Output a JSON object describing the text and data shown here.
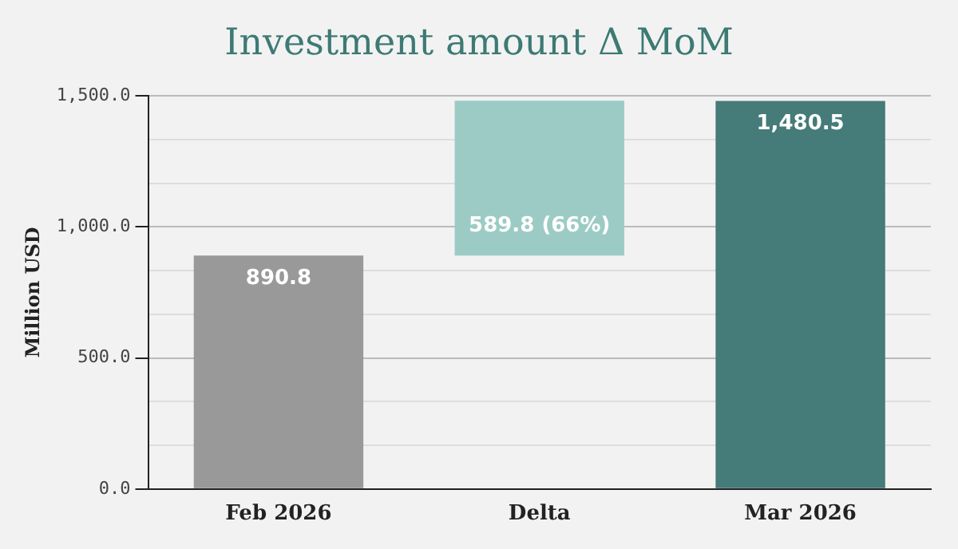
{
  "chart_data": {
    "type": "bar",
    "title": "Investment amount Δ MoM",
    "ylabel": "Million USD",
    "categories": [
      "Feb 2026",
      "Delta",
      "Mar 2026"
    ],
    "values": [
      890.8,
      589.8,
      1480.5
    ],
    "base": [
      0,
      890.8,
      0
    ],
    "colors": [
      "#999999",
      "#9ccbc5",
      "#457b78"
    ],
    "value_labels": [
      "890.8",
      "589.8 (66%)",
      "1,480.5"
    ],
    "ylim": [
      0,
      1500
    ],
    "yticks": [
      {
        "value": 0,
        "label": "0.0"
      },
      {
        "value": 166.7,
        "label": null
      },
      {
        "value": 333.3,
        "label": null
      },
      {
        "value": 500,
        "label": "500.0"
      },
      {
        "value": 666.7,
        "label": null
      },
      {
        "value": 833.3,
        "label": null
      },
      {
        "value": 1000,
        "label": "1,000.0"
      },
      {
        "value": 1166.7,
        "label": null
      },
      {
        "value": 1333.3,
        "label": null
      },
      {
        "value": 1500,
        "label": "1,500.0"
      }
    ],
    "grid": "y",
    "legend": false
  }
}
